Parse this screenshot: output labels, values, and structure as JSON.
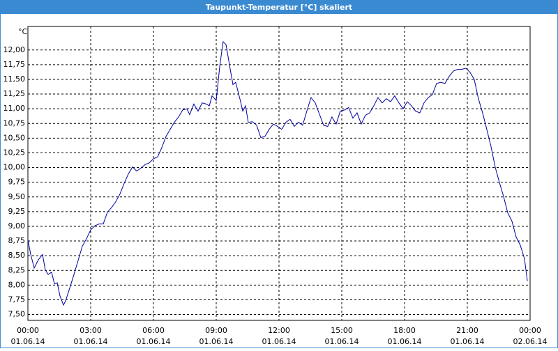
{
  "window_title": "Taupunkt-Temperatur [°C] skaliert",
  "chart_data": {
    "type": "line",
    "unit": "°C",
    "grid": true,
    "xlim": [
      0,
      24
    ],
    "ylim": [
      7.4,
      12.4
    ],
    "xticks": [
      {
        "value": 0,
        "label": "00:00"
      },
      {
        "value": 3,
        "label": "03:00"
      },
      {
        "value": 6,
        "label": "06:00"
      },
      {
        "value": 9,
        "label": "09:00"
      },
      {
        "value": 12,
        "label": "12:00"
      },
      {
        "value": 15,
        "label": "15:00"
      },
      {
        "value": 18,
        "label": "18:00"
      },
      {
        "value": 21,
        "label": "21:00"
      },
      {
        "value": 24,
        "label": "00:00"
      }
    ],
    "xtick_dates": [
      "01.06.14",
      "01.06.14",
      "01.06.14",
      "01.06.14",
      "01.06.14",
      "01.06.14",
      "01.06.14",
      "01.06.14",
      "02.06.14"
    ],
    "yticks": [
      {
        "value": 7.5,
        "label": "7,50"
      },
      {
        "value": 7.75,
        "label": "7,75"
      },
      {
        "value": 8,
        "label": "8,00"
      },
      {
        "value": 8.25,
        "label": "8,25"
      },
      {
        "value": 8.5,
        "label": "8,50"
      },
      {
        "value": 8.75,
        "label": "8,75"
      },
      {
        "value": 9,
        "label": "9,00"
      },
      {
        "value": 9.25,
        "label": "9,25"
      },
      {
        "value": 9.5,
        "label": "9,50"
      },
      {
        "value": 9.75,
        "label": "9,75"
      },
      {
        "value": 10,
        "label": "10,00"
      },
      {
        "value": 10.25,
        "label": "10,25"
      },
      {
        "value": 10.5,
        "label": "10,50"
      },
      {
        "value": 10.75,
        "label": "10,75"
      },
      {
        "value": 11,
        "label": "11,00"
      },
      {
        "value": 11.25,
        "label": "11,25"
      },
      {
        "value": 11.5,
        "label": "11,50"
      },
      {
        "value": 11.75,
        "label": "11,75"
      },
      {
        "value": 12,
        "label": "12,00"
      }
    ],
    "series": [
      {
        "color": "#0000a0",
        "x": [
          0,
          0.13,
          0.3,
          0.5,
          0.7,
          0.83,
          0.97,
          1.13,
          1.27,
          1.4,
          1.53,
          1.7,
          1.8,
          2,
          2.2,
          2.4,
          2.6,
          2.8,
          3,
          3.2,
          3.4,
          3.6,
          3.8,
          4,
          4.2,
          4.4,
          4.6,
          4.8,
          5,
          5.2,
          5.4,
          5.6,
          5.8,
          6,
          6.2,
          6.4,
          6.6,
          6.8,
          7,
          7.2,
          7.4,
          7.6,
          7.73,
          7.93,
          8.13,
          8.33,
          8.53,
          8.67,
          8.8,
          9,
          9.17,
          9.33,
          9.47,
          9.67,
          9.8,
          9.93,
          10.13,
          10.27,
          10.4,
          10.53,
          10.73,
          10.93,
          11.13,
          11.33,
          11.53,
          11.73,
          11.93,
          12.13,
          12.33,
          12.53,
          12.73,
          12.93,
          13.13,
          13.33,
          13.53,
          13.73,
          13.93,
          14.13,
          14.33,
          14.53,
          14.73,
          14.93,
          15.13,
          15.33,
          15.53,
          15.73,
          15.93,
          16.13,
          16.33,
          16.53,
          16.73,
          16.93,
          17.13,
          17.33,
          17.53,
          17.73,
          17.93,
          18.13,
          18.33,
          18.53,
          18.73,
          18.93,
          19.13,
          19.33,
          19.53,
          19.73,
          19.93,
          20.13,
          20.33,
          20.53,
          20.73,
          20.93,
          21.13,
          21.33,
          21.53,
          21.73,
          21.93,
          22.13,
          22.33,
          22.53,
          22.73,
          22.93,
          23.13,
          23.33,
          23.53,
          23.73,
          23.87
        ],
        "values": [
          8.77,
          8.53,
          8.29,
          8.43,
          8.52,
          8.26,
          8.18,
          8.22,
          8.02,
          8.04,
          7.82,
          7.66,
          7.73,
          7.95,
          8.18,
          8.42,
          8.66,
          8.79,
          8.94,
          9.01,
          9.04,
          9.04,
          9.24,
          9.32,
          9.42,
          9.55,
          9.73,
          9.89,
          10.01,
          9.94,
          9.99,
          10.05,
          10.08,
          10.15,
          10.18,
          10.34,
          10.53,
          10.65,
          10.77,
          10.86,
          10.98,
          11.0,
          10.9,
          11.08,
          10.96,
          11.1,
          11.08,
          11.05,
          11.22,
          11.14,
          11.73,
          12.14,
          12.09,
          11.67,
          11.41,
          11.45,
          11.17,
          10.96,
          11.05,
          10.77,
          10.78,
          10.72,
          10.51,
          10.53,
          10.65,
          10.74,
          10.7,
          10.65,
          10.77,
          10.82,
          10.7,
          10.77,
          10.72,
          10.96,
          11.19,
          11.1,
          10.91,
          10.72,
          10.7,
          10.86,
          10.74,
          10.96,
          10.98,
          11.02,
          10.84,
          10.93,
          10.74,
          10.89,
          10.93,
          11.05,
          11.19,
          11.1,
          11.17,
          11.12,
          11.22,
          11.1,
          11.0,
          11.12,
          11.05,
          10.96,
          10.93,
          11.1,
          11.19,
          11.24,
          11.43,
          11.45,
          11.43,
          11.55,
          11.64,
          11.67,
          11.67,
          11.69,
          11.62,
          11.5,
          11.17,
          10.93,
          10.65,
          10.36,
          10.01,
          9.75,
          9.51,
          9.23,
          9.09,
          8.82,
          8.68,
          8.45,
          8.07
        ]
      }
    ]
  }
}
